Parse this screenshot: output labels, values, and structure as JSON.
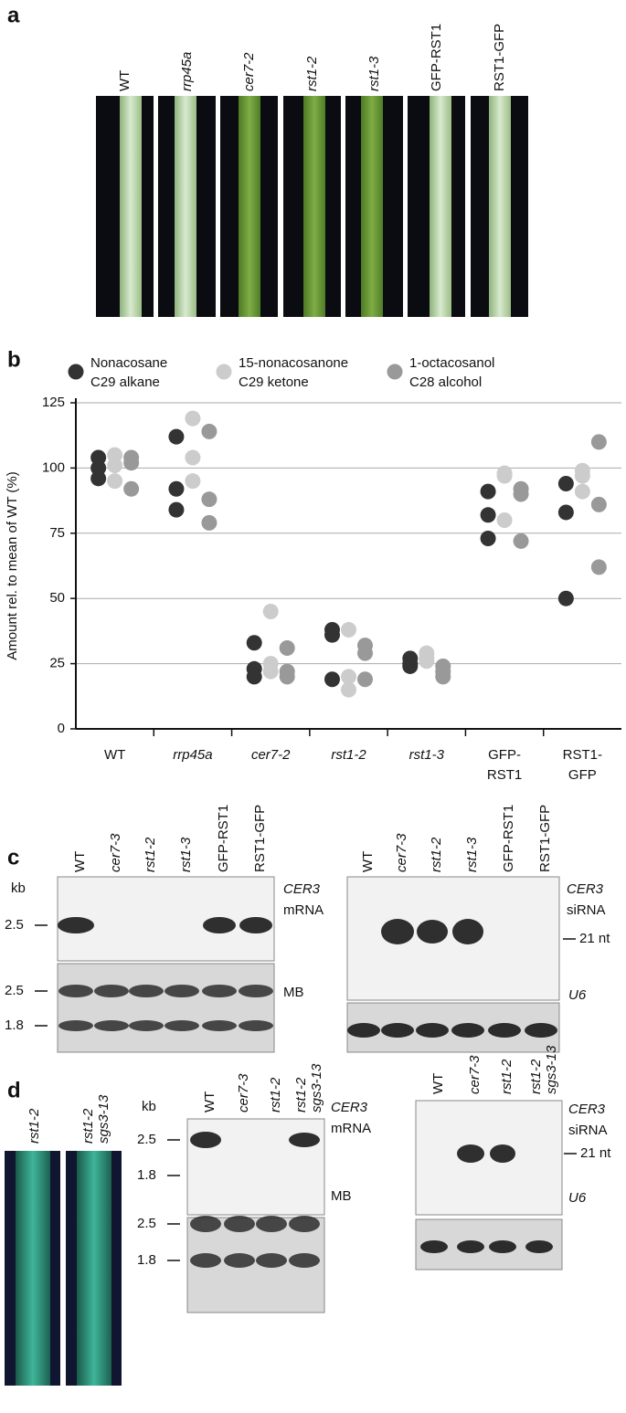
{
  "panel_a": {
    "label": "a",
    "lanes": [
      "WT",
      "rrp45a",
      "cer7-2",
      "rst1-2",
      "rst1-3",
      "GFP-RST1",
      "RST1-GFP"
    ]
  },
  "chart_data": {
    "type": "scatter",
    "label": "b",
    "ylabel": "Amount rel. to mean of WT (%)",
    "categories": [
      "WT",
      "rrp45a",
      "cer7-2",
      "rst1-2",
      "rst1-3",
      "GFP-RST1",
      "RST1-GFP"
    ],
    "series": [
      {
        "name": "Nonacosane C29 alkane",
        "color": "#333333",
        "values": [
          [
            104,
            100,
            96
          ],
          [
            112,
            92,
            84
          ],
          [
            33,
            23,
            20
          ],
          [
            38,
            36,
            19
          ],
          [
            27,
            25,
            24
          ],
          [
            91,
            82,
            73
          ],
          [
            94,
            83,
            50
          ]
        ]
      },
      {
        "name": "15-nonacosanone C29 ketone",
        "color": "#cccccc",
        "values": [
          [
            105,
            101,
            95
          ],
          [
            119,
            104,
            95
          ],
          [
            45,
            25,
            22
          ],
          [
            38,
            20,
            15
          ],
          [
            29,
            27,
            26
          ],
          [
            98,
            97,
            80
          ],
          [
            99,
            97,
            91
          ]
        ]
      },
      {
        "name": "1-octacosanol C28 alcohol",
        "color": "#999999",
        "values": [
          [
            104,
            102,
            92
          ],
          [
            114,
            88,
            79
          ],
          [
            31,
            22,
            20
          ],
          [
            32,
            29,
            19
          ],
          [
            24,
            22,
            20
          ],
          [
            92,
            90,
            72
          ],
          [
            110,
            86,
            62
          ]
        ]
      }
    ],
    "ylim": [
      0,
      125
    ],
    "yticks": [
      0,
      25,
      50,
      75,
      100,
      125
    ],
    "grid": true
  },
  "panel_c": {
    "label": "c",
    "left": {
      "lanes": [
        "WT",
        "cer7-3",
        "rst1-2",
        "rst1-3",
        "GFP-RST1",
        "RST1-GFP"
      ],
      "kb": "kb",
      "sizes_upper": [
        "2.5"
      ],
      "sizes_lower": [
        "2.5",
        "1.8"
      ],
      "probe": [
        "CER3",
        "mRNA"
      ],
      "loading": "MB"
    },
    "right": {
      "lanes": [
        "WT",
        "cer7-3",
        "rst1-2",
        "rst1-3",
        "GFP-RST1",
        "RST1-GFP"
      ],
      "probe": [
        "CER3",
        "siRNA"
      ],
      "marker": "21 nt",
      "loading": "U6"
    }
  },
  "panel_d": {
    "label": "d",
    "photo_lanes": [
      [
        "rst1-2"
      ],
      [
        "rst1-2",
        "sgs3-13"
      ]
    ],
    "middle": {
      "lanes": [
        [
          "WT"
        ],
        [
          "cer7-3"
        ],
        [
          "rst1-2"
        ],
        [
          "rst1-2",
          "sgs3-13"
        ]
      ],
      "kb": "kb",
      "sizes_upper": [
        "2.5",
        "1.8"
      ],
      "sizes_lower": [
        "2.5",
        "1.8"
      ],
      "probe": [
        "CER3",
        "mRNA"
      ],
      "loading": "MB"
    },
    "right": {
      "lanes": [
        [
          "WT"
        ],
        [
          "cer7-3"
        ],
        [
          "rst1-2"
        ],
        [
          "rst1-2",
          "sgs3-13"
        ]
      ],
      "probe": [
        "CER3",
        "siRNA"
      ],
      "marker": "21 nt",
      "loading": "U6"
    }
  }
}
